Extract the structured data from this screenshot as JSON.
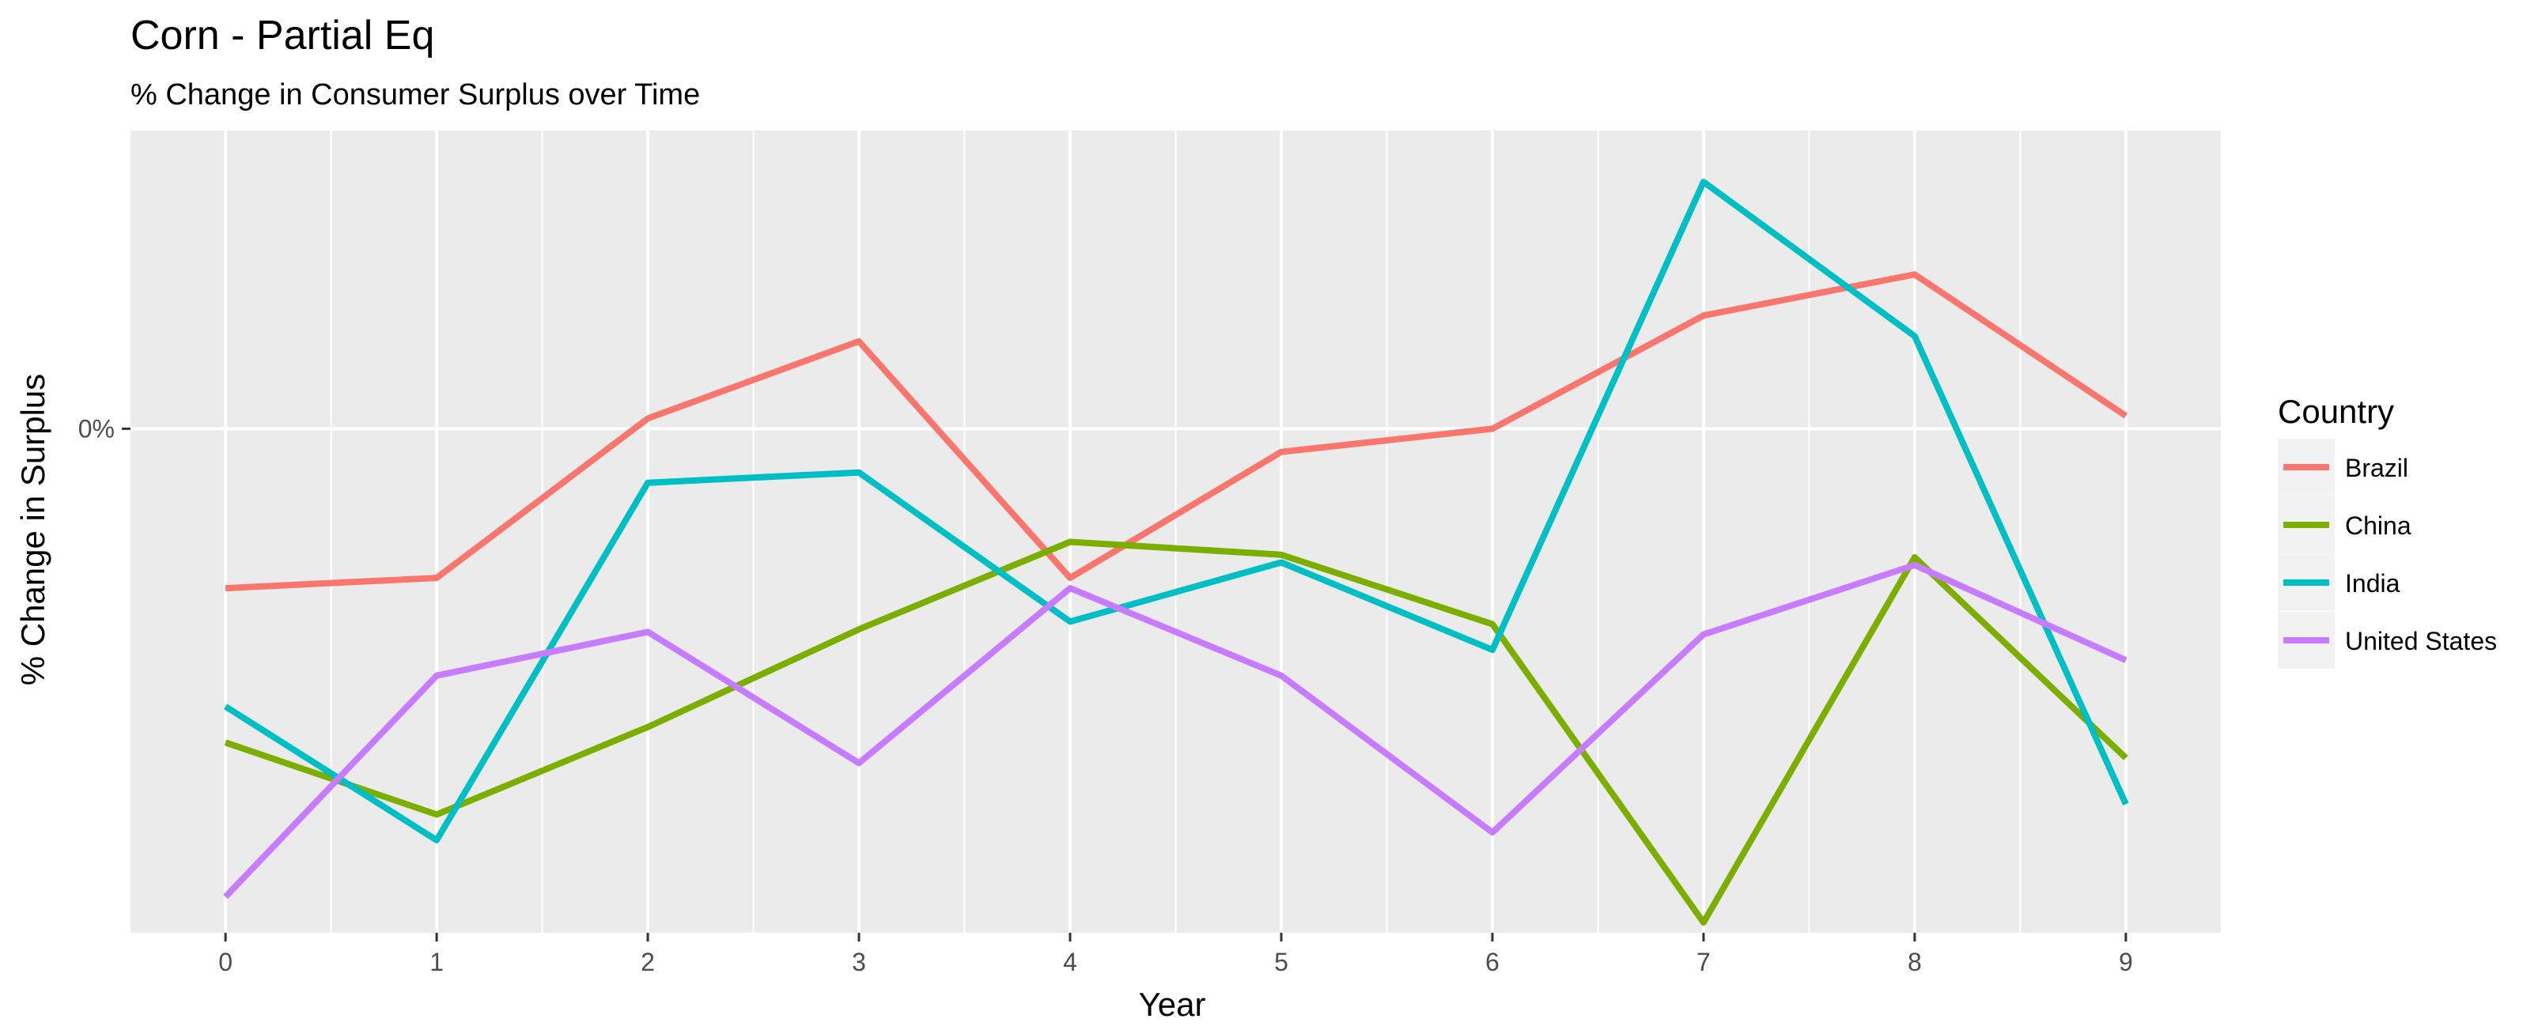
{
  "chart_data": {
    "type": "line",
    "title": "Corn - Partial Eq",
    "subtitle": "% Change in Consumer Surplus over Time",
    "xlabel": "Year",
    "ylabel": "% Change in Surplus",
    "x": [
      0,
      1,
      2,
      3,
      4,
      5,
      6,
      7,
      8,
      9
    ],
    "x_tick_labels": [
      "0",
      "1",
      "2",
      "3",
      "4",
      "5",
      "6",
      "7",
      "8",
      "9"
    ],
    "y_tick_labels": [
      {
        "value": 0,
        "label": "0%"
      }
    ],
    "xlim": [
      -0.45,
      9.45
    ],
    "ylim": [
      -0.098,
      0.058
    ],
    "grid": true,
    "legend_placement": "right",
    "legend_title": "Country",
    "series": [
      {
        "name": "Brazil",
        "color": "#F8766D",
        "values": [
          -0.031,
          -0.029,
          0.002,
          0.017,
          -0.029,
          -0.0045,
          0.0,
          0.022,
          0.03,
          0.0025
        ]
      },
      {
        "name": "China",
        "color": "#7CAE00",
        "values": [
          -0.061,
          -0.075,
          -0.058,
          -0.039,
          -0.022,
          -0.0245,
          -0.038,
          -0.096,
          -0.025,
          -0.064
        ]
      },
      {
        "name": "India",
        "color": "#00BFC4",
        "values": [
          -0.054,
          -0.08,
          -0.0105,
          -0.0085,
          -0.0375,
          -0.026,
          -0.043,
          0.048,
          0.018,
          -0.073
        ]
      },
      {
        "name": "United States",
        "color": "#C77CFF",
        "values": [
          -0.091,
          -0.048,
          -0.0395,
          -0.065,
          -0.031,
          -0.048,
          -0.0785,
          -0.04,
          -0.0265,
          -0.045
        ]
      }
    ]
  }
}
